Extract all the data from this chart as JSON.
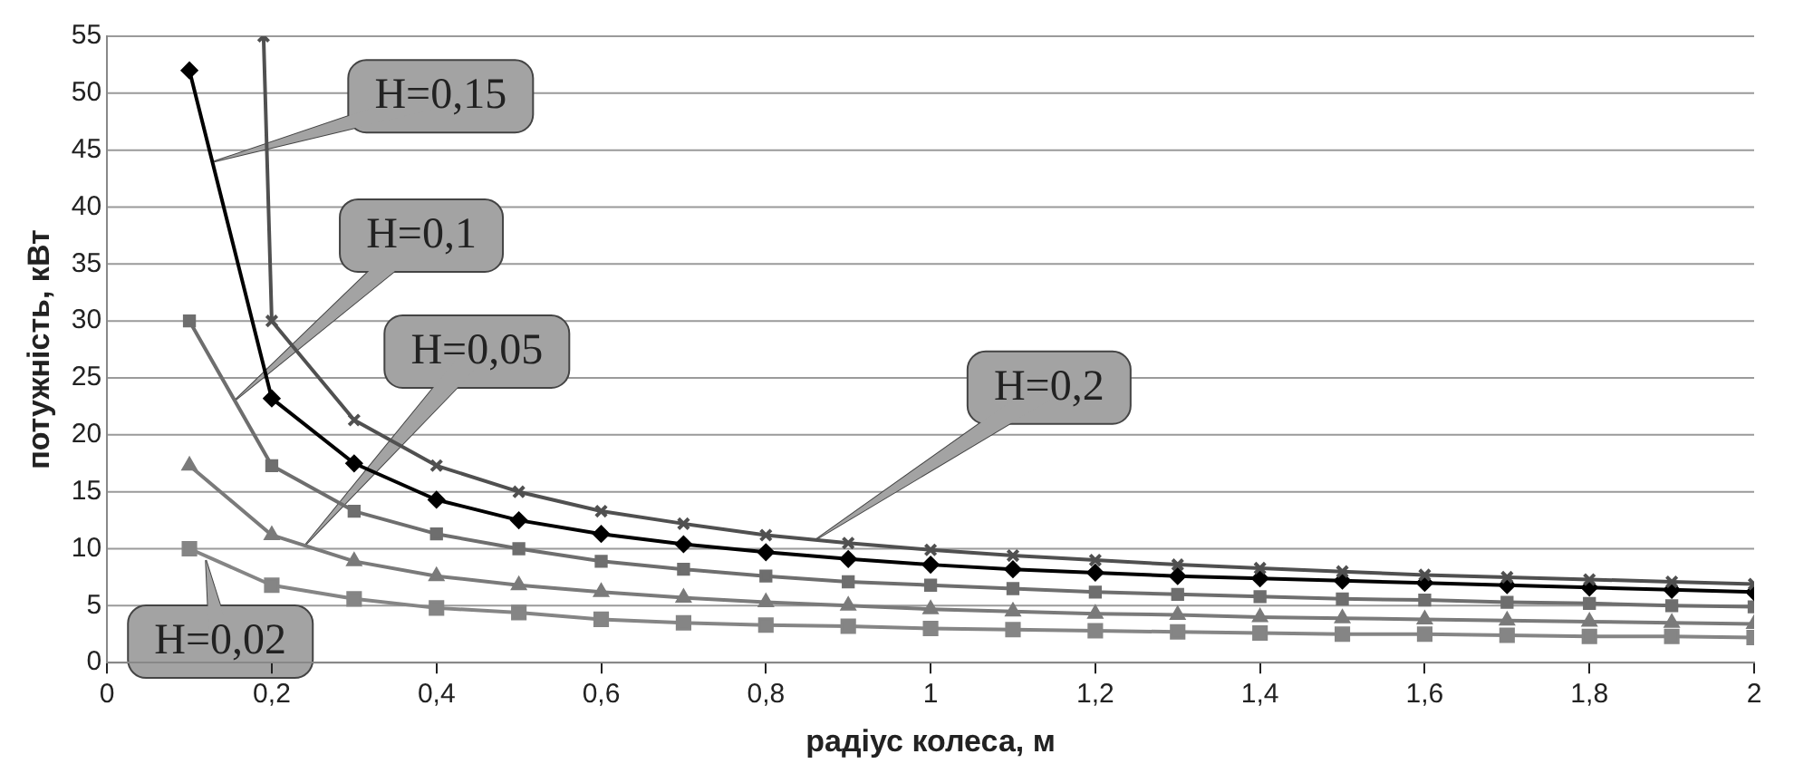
{
  "chart_data": {
    "type": "line",
    "xlabel": "радіус колеса, м",
    "ylabel": "потужність, кВт",
    "xlim": [
      0,
      2
    ],
    "xticks": [
      0,
      {
        "value": 0.2,
        "label": "0,2"
      },
      {
        "value": 0.4,
        "label": "0,4"
      },
      {
        "value": 0.6,
        "label": "0,6"
      },
      {
        "value": 0.8,
        "label": "0,8"
      },
      1,
      {
        "value": 1.2,
        "label": "1,2"
      },
      {
        "value": 1.4,
        "label": "1,4"
      },
      {
        "value": 1.6,
        "label": "1,6"
      },
      {
        "value": 1.8,
        "label": "1,8"
      },
      2
    ],
    "ylim": [
      0,
      55
    ],
    "yticks": [
      0,
      5,
      10,
      15,
      20,
      25,
      30,
      35,
      40,
      45,
      50,
      55
    ],
    "grid": "y",
    "legend": false,
    "annotations": [
      {
        "text": "H=0,15",
        "x": 0.13,
        "y": 44
      },
      "H=0,1",
      "H=0,05",
      "H=0,2",
      {
        "text": "H=0,02",
        "x": 0.12,
        "y": 9
      }
    ],
    "series": [
      {
        "color": "#505050",
        "marker": "cross",
        "x": [
          0.19,
          0.2,
          0.3,
          0.4,
          0.5,
          0.6,
          0.7,
          0.8,
          0.9,
          1.0,
          1.1,
          1.2,
          1.3,
          1.4,
          1.5,
          1.6,
          1.7,
          1.8,
          1.9,
          2.0
        ],
        "values": [
          55,
          30,
          21.3,
          17.3,
          15,
          13.3,
          12.2,
          11.2,
          10.5,
          9.9,
          9.4,
          9.0,
          8.6,
          8.3,
          8.0,
          7.7,
          7.5,
          7.3,
          7.1,
          6.9
        ]
      },
      {
        "color": "#000000",
        "marker": "diamond",
        "x": [
          0.1,
          0.2,
          0.3,
          0.4,
          0.5,
          0.6,
          0.7,
          0.8,
          0.9,
          1.0,
          1.1,
          1.2,
          1.3,
          1.4,
          1.5,
          1.6,
          1.7,
          1.8,
          1.9,
          2.0
        ],
        "values": [
          52,
          23.2,
          17.5,
          14.3,
          12.5,
          11.3,
          10.4,
          9.7,
          9.1,
          8.6,
          8.2,
          7.9,
          7.6,
          7.4,
          7.2,
          7.0,
          6.8,
          6.6,
          6.4,
          6.2
        ]
      },
      {
        "color": "#6e6e6e",
        "marker": "square",
        "x": [
          0.1,
          0.2,
          0.3,
          0.4,
          0.5,
          0.6,
          0.7,
          0.8,
          0.9,
          1.0,
          1.1,
          1.2,
          1.3,
          1.4,
          1.5,
          1.6,
          1.7,
          1.8,
          1.9,
          2.0
        ],
        "values": [
          30,
          17.3,
          13.3,
          11.3,
          10,
          8.9,
          8.2,
          7.6,
          7.1,
          6.8,
          6.5,
          6.2,
          6.0,
          5.8,
          5.6,
          5.5,
          5.3,
          5.2,
          5.0,
          4.9
        ]
      },
      {
        "color": "#7a7a7a",
        "marker": "triangle",
        "x": [
          0.1,
          0.2,
          0.3,
          0.4,
          0.5,
          0.6,
          0.7,
          0.8,
          0.9,
          1.0,
          1.1,
          1.2,
          1.3,
          1.4,
          1.5,
          1.6,
          1.7,
          1.8,
          1.9,
          2.0
        ],
        "values": [
          17.3,
          11.2,
          8.9,
          7.6,
          6.8,
          6.2,
          5.7,
          5.3,
          5.0,
          4.7,
          4.5,
          4.3,
          4.2,
          4.0,
          3.9,
          3.8,
          3.7,
          3.6,
          3.5,
          3.4
        ]
      },
      {
        "color": "#858585",
        "marker": "square",
        "x": [
          0.1,
          0.2,
          0.3,
          0.4,
          0.5,
          0.6,
          0.7,
          0.8,
          0.9,
          1.0,
          1.1,
          1.2,
          1.3,
          1.4,
          1.5,
          1.6,
          1.7,
          1.8,
          1.9,
          2.0
        ],
        "values": [
          10,
          6.8,
          5.6,
          4.8,
          4.4,
          3.8,
          3.5,
          3.3,
          3.2,
          3.0,
          2.9,
          2.8,
          2.7,
          2.6,
          2.5,
          2.5,
          2.4,
          2.3,
          2.3,
          2.2
        ]
      }
    ]
  }
}
